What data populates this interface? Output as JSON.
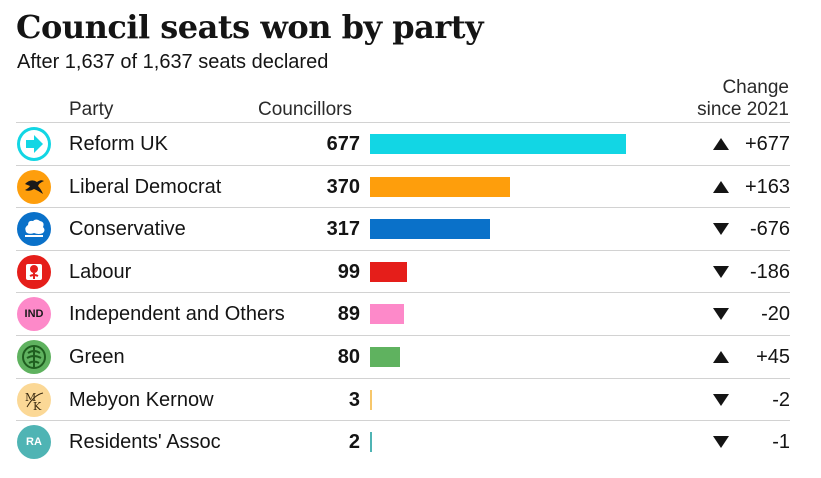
{
  "title": "Council seats won by party",
  "subtitle": "After 1,637 of 1,637 seats declared",
  "headers": {
    "party": "Party",
    "councillors": "Councillors",
    "change_line1": "Change",
    "change_line2": "since 2021"
  },
  "chart_data": {
    "type": "bar",
    "title": "Council seats won by party",
    "subtitle": "After 1,637 of 1,637 seats declared",
    "xlim": [
      0,
      677
    ],
    "categories": [
      "Reform UK",
      "Liberal Democrat",
      "Conservative",
      "Labour",
      "Independent and Others",
      "Green",
      "Mebyon Kernow",
      "Residents' Assoc"
    ],
    "values": [
      677,
      370,
      317,
      99,
      89,
      80,
      3,
      2
    ],
    "change_since_2021": [
      677,
      163,
      -676,
      -186,
      -20,
      45,
      -2,
      -1
    ],
    "rows": [
      {
        "party": "Reform UK",
        "councillors": "677",
        "value": 677,
        "change": "+677",
        "direction": "up",
        "color": "#12d6e4",
        "icon": "reform-arrow-icon",
        "logo_bg": "#12d6e4",
        "logo_text": ""
      },
      {
        "party": "Liberal Democrat",
        "councillors": "370",
        "value": 370,
        "change": "+163",
        "direction": "up",
        "color": "#fe9e0c",
        "icon": "libdem-bird-icon",
        "logo_bg": "#fe9e0c",
        "logo_text": ""
      },
      {
        "party": "Conservative",
        "councillors": "317",
        "value": 317,
        "change": "-676",
        "direction": "down",
        "color": "#0a71c9",
        "icon": "conservative-tree-icon",
        "logo_bg": "#0a71c9",
        "logo_text": ""
      },
      {
        "party": "Labour",
        "councillors": "99",
        "value": 99,
        "change": "-186",
        "direction": "down",
        "color": "#e51e1a",
        "icon": "labour-rose-icon",
        "logo_bg": "#e51e1a",
        "logo_text": ""
      },
      {
        "party": "Independent and Others",
        "councillors": "89",
        "value": 89,
        "change": "-20",
        "direction": "down",
        "color": "#fd89c9",
        "icon": "independent-badge-icon",
        "logo_bg": "#fd89c9",
        "logo_text": "IND"
      },
      {
        "party": "Green",
        "councillors": "80",
        "value": 80,
        "change": "+45",
        "direction": "up",
        "color": "#5fb25f",
        "icon": "green-globe-icon",
        "logo_bg": "#5fb25f",
        "logo_text": ""
      },
      {
        "party": "Mebyon Kernow",
        "councillors": "3",
        "value": 3,
        "change": "-2",
        "direction": "down",
        "color": "#f7c76b",
        "icon": "mebyon-kernow-monogram-icon",
        "logo_bg": "#fbd896",
        "logo_text": ""
      },
      {
        "party": "Residents' Assoc",
        "councillors": "2",
        "value": 2,
        "change": "-1",
        "direction": "down",
        "color": "#4fb4b4",
        "icon": "residents-badge-icon",
        "logo_bg": "#4fb4b4",
        "logo_text": "RA"
      }
    ]
  }
}
